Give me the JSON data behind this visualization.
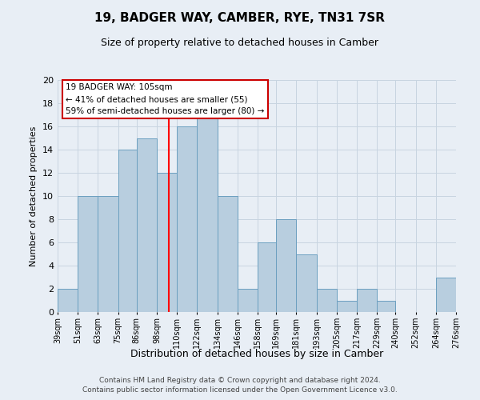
{
  "title": "19, BADGER WAY, CAMBER, RYE, TN31 7SR",
  "subtitle": "Size of property relative to detached houses in Camber",
  "xlabel": "Distribution of detached houses by size in Camber",
  "ylabel": "Number of detached properties",
  "bin_edges": [
    39,
    51,
    63,
    75,
    86,
    98,
    110,
    122,
    134,
    146,
    158,
    169,
    181,
    193,
    205,
    217,
    229,
    240,
    252,
    264,
    276
  ],
  "bar_heights": [
    2,
    10,
    10,
    14,
    15,
    12,
    16,
    17,
    10,
    2,
    6,
    8,
    5,
    2,
    1,
    2,
    1,
    0,
    0,
    3
  ],
  "bar_color": "#b8cedf",
  "bar_edge_color": "#6b9fc0",
  "grid_color": "#c8d4e0",
  "background_color": "#e8eef5",
  "red_line_x": 105,
  "annotation_text": "19 BADGER WAY: 105sqm\n← 41% of detached houses are smaller (55)\n59% of semi-detached houses are larger (80) →",
  "annotation_box_color": "#ffffff",
  "annotation_box_edge": "#cc0000",
  "ylim": [
    0,
    20
  ],
  "yticks": [
    0,
    2,
    4,
    6,
    8,
    10,
    12,
    14,
    16,
    18,
    20
  ],
  "footer_line1": "Contains HM Land Registry data © Crown copyright and database right 2024.",
  "footer_line2": "Contains public sector information licensed under the Open Government Licence v3.0."
}
